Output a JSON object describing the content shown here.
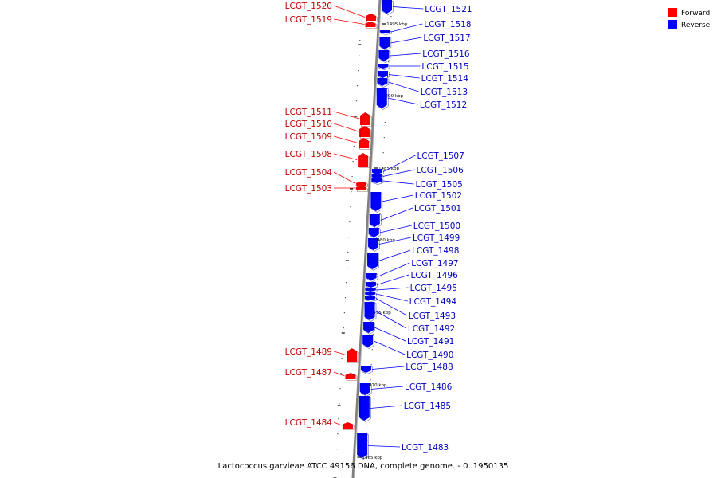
{
  "caption": "Lactococcus garvieae ATCC 49156 DNA, complete genome. - 0..1950135",
  "legend": [
    {
      "label": "Forward",
      "color": "#ff0000"
    },
    {
      "label": "Reverse",
      "color": "#0000ff"
    }
  ],
  "colors": {
    "forward": "#ff0000",
    "reverse": "#0000ff",
    "backbone": "#808080"
  },
  "ticks": [
    "1495 kbp",
    "1490 kbp",
    "1485 kbp",
    "1480 kbp",
    "1475 kbp",
    "1470 kbp",
    "1465 kbp"
  ],
  "forward_genes": [
    "LCGT_1520",
    "LCGT_1519",
    "LCGT_1511",
    "LCGT_1510",
    "LCGT_1509",
    "LCGT_1508",
    "LCGT_1504",
    "LCGT_1503",
    "LCGT_1489",
    "LCGT_1487",
    "LCGT_1484"
  ],
  "reverse_genes": [
    "LCGT_1521",
    "LCGT_1518",
    "LCGT_1517",
    "LCGT_1516",
    "LCGT_1515",
    "LCGT_1514",
    "LCGT_1513",
    "LCGT_1512",
    "LCGT_1507",
    "LCGT_1506",
    "LCGT_1505",
    "LCGT_1502",
    "LCGT_1501",
    "LCGT_1500",
    "LCGT_1499",
    "LCGT_1498",
    "LCGT_1497",
    "LCGT_1496",
    "LCGT_1495",
    "LCGT_1494",
    "LCGT_1493",
    "LCGT_1492",
    "LCGT_1491",
    "LCGT_1490",
    "LCGT_1488",
    "LCGT_1486",
    "LCGT_1485",
    "LCGT_1483"
  ]
}
